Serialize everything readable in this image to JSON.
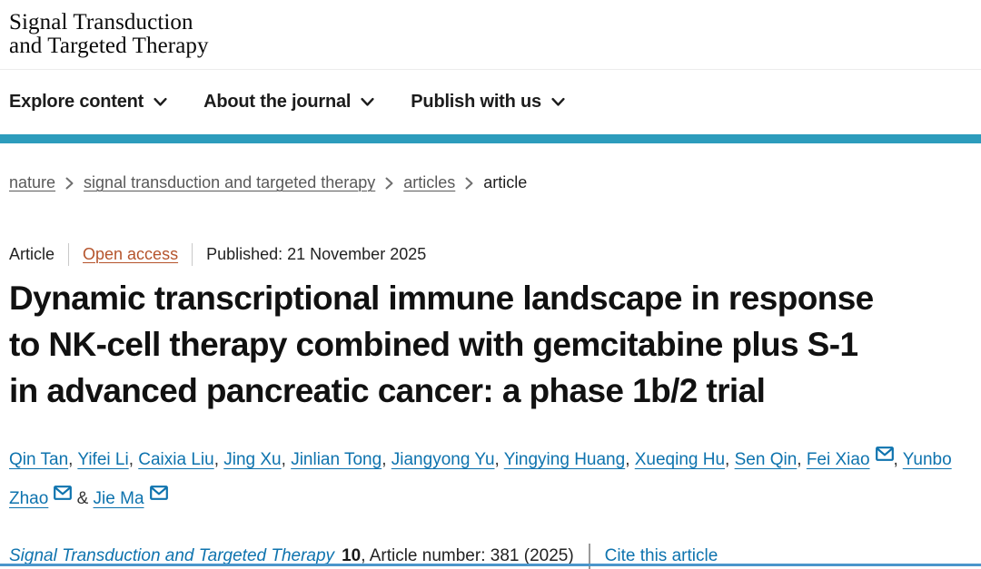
{
  "journal": {
    "logo_line1": "Signal Transduction",
    "logo_line2": "and Targeted Therapy"
  },
  "nav": {
    "items": [
      {
        "label": "Explore content"
      },
      {
        "label": "About the journal"
      },
      {
        "label": "Publish with us"
      }
    ]
  },
  "breadcrumb": {
    "items": [
      {
        "label": "nature"
      },
      {
        "label": "signal transduction and targeted therapy"
      },
      {
        "label": "articles"
      },
      {
        "label": "article"
      }
    ]
  },
  "article_meta": {
    "type_label": "Article",
    "access_label": "Open access",
    "published_text": "Published: 21 November 2025"
  },
  "title_lines": [
    "Dynamic transcriptional immune landscape in response",
    "to NK-cell therapy combined with gemcitabine plus S-1",
    "in advanced pancreatic cancer: a phase 1b/2 trial"
  ],
  "authors": {
    "comma": ",",
    "ampersand": "&",
    "names": [
      {
        "name": "Qin Tan",
        "email": false
      },
      {
        "name": "Yifei Li",
        "email": false
      },
      {
        "name": "Caixia Liu",
        "email": false
      },
      {
        "name": "Jing Xu",
        "email": false
      },
      {
        "name": "Jinlian Tong",
        "email": false
      },
      {
        "name": "Jiangyong Yu",
        "email": false
      },
      {
        "name": "Yingying Huang",
        "email": false
      },
      {
        "name": "Xueqing Hu",
        "email": false
      },
      {
        "name": "Sen Qin",
        "email": false
      },
      {
        "name": "Fei Xiao",
        "email": true
      },
      {
        "name": "Yunbo Zhao",
        "email": true
      },
      {
        "name": "Jie Ma",
        "email": true
      }
    ]
  },
  "citation": {
    "journal_name": "Signal Transduction and Targeted Therapy",
    "volume": "10",
    "article_number_text": ", Article number: 381 (2025)",
    "cite_label": "Cite this article"
  },
  "colors": {
    "accent_bar": "#2d9cbc",
    "link_blue": "#0e73ae",
    "open_access": "#b5542c",
    "bottom_divider": "#4b96cb"
  }
}
